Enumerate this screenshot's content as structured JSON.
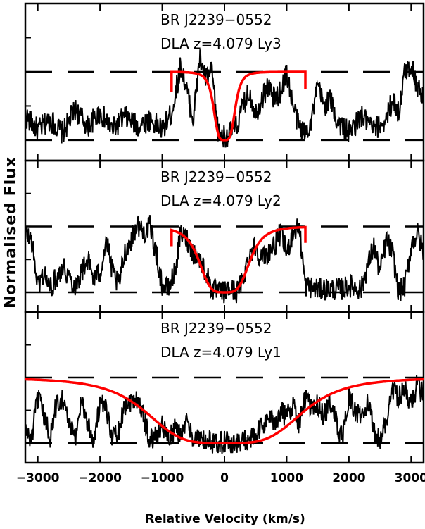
{
  "figure": {
    "y_axis_label": "Normalised Flux",
    "x_axis_label": "Relative Velocity (km/s)"
  },
  "chart_data": {
    "type": "line",
    "xlim": [
      -3200,
      3200
    ],
    "x_ticks": [
      -3000,
      -2000,
      -1000,
      0,
      1000,
      2000,
      3000
    ],
    "x_tick_labels": [
      "−3000",
      "−2000",
      "−1000",
      "0",
      "1000",
      "2000",
      "3000"
    ],
    "xlabel": "Relative Velocity (km/s)",
    "ylabel": "Normalised Flux",
    "colors": {
      "data": "#000000",
      "model": "#ff0000"
    },
    "panels": [
      {
        "name": "Ly3",
        "label_object": "BR   J2239−0552",
        "label_line": "DLA  z=4.079  Ly3",
        "ylim": [
          -0.3,
          2.0
        ],
        "reference_levels": [
          0,
          1
        ],
        "model": {
          "type": "voigt",
          "center": 0,
          "depth": 1.0,
          "width": 180,
          "xrange": [
            -850,
            1300
          ]
        },
        "flux_anchors": [
          [
            -3200,
            0.35
          ],
          [
            -3000,
            0.15
          ],
          [
            -2800,
            0.3
          ],
          [
            -2600,
            0.1
          ],
          [
            -2400,
            0.45
          ],
          [
            -2200,
            0.2
          ],
          [
            -2000,
            0.4
          ],
          [
            -1800,
            0.15
          ],
          [
            -1600,
            0.35
          ],
          [
            -1400,
            0.2
          ],
          [
            -1200,
            0.3
          ],
          [
            -1000,
            0.15
          ],
          [
            -850,
            0.4
          ],
          [
            -700,
            1.1
          ],
          [
            -600,
            0.7
          ],
          [
            -500,
            0.3
          ],
          [
            -400,
            1.2
          ],
          [
            -300,
            0.9
          ],
          [
            -200,
            1.0
          ],
          [
            -100,
            0.1
          ],
          [
            0,
            0.05
          ],
          [
            100,
            0.1
          ],
          [
            200,
            0.2
          ],
          [
            300,
            0.5
          ],
          [
            400,
            0.7
          ],
          [
            500,
            0.4
          ],
          [
            600,
            0.6
          ],
          [
            700,
            0.8
          ],
          [
            800,
            0.6
          ],
          [
            900,
            0.7
          ],
          [
            1000,
            1.0
          ],
          [
            1100,
            0.5
          ],
          [
            1200,
            0.2
          ],
          [
            1300,
            0.1
          ],
          [
            1400,
            0.3
          ],
          [
            1500,
            0.8
          ],
          [
            1600,
            0.5
          ],
          [
            1700,
            0.6
          ],
          [
            1800,
            0.3
          ],
          [
            2000,
            0.1
          ],
          [
            2200,
            0.35
          ],
          [
            2400,
            0.15
          ],
          [
            2600,
            0.3
          ],
          [
            2700,
            0.6
          ],
          [
            2800,
            0.4
          ],
          [
            2900,
            1.0
          ],
          [
            3000,
            1.1
          ],
          [
            3100,
            0.8
          ],
          [
            3200,
            0.6
          ]
        ]
      },
      {
        "name": "Ly2",
        "label_object": "BR   J2239−0552",
        "label_line": "DLA  z=4.079  Ly2",
        "ylim": [
          -0.3,
          2.0
        ],
        "reference_levels": [
          0,
          1
        ],
        "model": {
          "type": "voigt",
          "center": 0,
          "depth": 1.0,
          "width": 420,
          "xrange": [
            -850,
            1300
          ]
        },
        "flux_anchors": [
          [
            -3200,
            0.9
          ],
          [
            -3100,
            0.8
          ],
          [
            -3000,
            0.1
          ],
          [
            -2900,
            0.3
          ],
          [
            -2800,
            0.05
          ],
          [
            -2600,
            0.4
          ],
          [
            -2400,
            0.1
          ],
          [
            -2200,
            0.5
          ],
          [
            -2100,
            0.2
          ],
          [
            -2000,
            0.3
          ],
          [
            -1900,
            0.8
          ],
          [
            -1800,
            0.3
          ],
          [
            -1700,
            0.1
          ],
          [
            -1600,
            0.6
          ],
          [
            -1500,
            0.8
          ],
          [
            -1400,
            1.05
          ],
          [
            -1300,
            0.9
          ],
          [
            -1200,
            1.0
          ],
          [
            -1100,
            0.6
          ],
          [
            -1000,
            0.1
          ],
          [
            -900,
            0.05
          ],
          [
            -800,
            0.3
          ],
          [
            -700,
            0.9
          ],
          [
            -600,
            0.8
          ],
          [
            -500,
            0.6
          ],
          [
            -400,
            0.5
          ],
          [
            -300,
            0.3
          ],
          [
            -200,
            0.05
          ],
          [
            -100,
            0.0
          ],
          [
            0,
            0.0
          ],
          [
            100,
            0.05
          ],
          [
            200,
            0.0
          ],
          [
            300,
            0.2
          ],
          [
            400,
            0.6
          ],
          [
            500,
            0.7
          ],
          [
            600,
            0.5
          ],
          [
            700,
            0.6
          ],
          [
            800,
            0.7
          ],
          [
            900,
            0.9
          ],
          [
            1000,
            0.6
          ],
          [
            1100,
            0.9
          ],
          [
            1200,
            1.0
          ],
          [
            1300,
            0.1
          ],
          [
            1500,
            0.05
          ],
          [
            1700,
            0.05
          ],
          [
            1900,
            0.05
          ],
          [
            2000,
            0.1
          ],
          [
            2200,
            0.05
          ],
          [
            2300,
            0.4
          ],
          [
            2400,
            0.7
          ],
          [
            2500,
            0.3
          ],
          [
            2600,
            0.8
          ],
          [
            2700,
            0.6
          ],
          [
            2800,
            0.0
          ],
          [
            2900,
            0.1
          ],
          [
            3000,
            0.7
          ],
          [
            3100,
            0.9
          ],
          [
            3200,
            0.6
          ]
        ]
      },
      {
        "name": "Ly1",
        "label_object": "BR   J2239−0552",
        "label_line": "DLA  z=4.079  Ly1",
        "ylim": [
          -0.3,
          2.0
        ],
        "reference_levels": [
          0,
          1
        ],
        "model": {
          "type": "voigt",
          "center": 0,
          "depth": 1.0,
          "width": 1300,
          "xrange": [
            -3200,
            3200
          ]
        },
        "flux_anchors": [
          [
            -3200,
            0.2
          ],
          [
            -3100,
            0.05
          ],
          [
            -3000,
            0.7
          ],
          [
            -2900,
            0.4
          ],
          [
            -2800,
            0.1
          ],
          [
            -2700,
            0.6
          ],
          [
            -2600,
            0.7
          ],
          [
            -2500,
            0.3
          ],
          [
            -2400,
            0.05
          ],
          [
            -2300,
            0.7
          ],
          [
            -2200,
            0.3
          ],
          [
            -2100,
            0.05
          ],
          [
            -2000,
            0.6
          ],
          [
            -1900,
            0.5
          ],
          [
            -1800,
            0.1
          ],
          [
            -1700,
            0.2
          ],
          [
            -1600,
            0.6
          ],
          [
            -1500,
            0.65
          ],
          [
            -1400,
            0.7
          ],
          [
            -1300,
            0.4
          ],
          [
            -1200,
            0.05
          ],
          [
            -1100,
            0.1
          ],
          [
            -1000,
            0.3
          ],
          [
            -900,
            0.05
          ],
          [
            -800,
            0.2
          ],
          [
            -700,
            0.15
          ],
          [
            -600,
            0.3
          ],
          [
            -500,
            0.1
          ],
          [
            -400,
            0.05
          ],
          [
            -200,
            0.0
          ],
          [
            0,
            0.02
          ],
          [
            200,
            0.0
          ],
          [
            400,
            0.05
          ],
          [
            500,
            0.1
          ],
          [
            600,
            0.25
          ],
          [
            700,
            0.4
          ],
          [
            800,
            0.3
          ],
          [
            900,
            0.5
          ],
          [
            1000,
            0.4
          ],
          [
            1100,
            0.6
          ],
          [
            1200,
            0.3
          ],
          [
            1300,
            0.7
          ],
          [
            1400,
            0.5
          ],
          [
            1500,
            0.6
          ],
          [
            1600,
            0.4
          ],
          [
            1700,
            0.65
          ],
          [
            1800,
            0.3
          ],
          [
            1900,
            0.05
          ],
          [
            2000,
            0.7
          ],
          [
            2100,
            0.5
          ],
          [
            2200,
            0.4
          ],
          [
            2300,
            0.6
          ],
          [
            2400,
            0.2
          ],
          [
            2500,
            0.05
          ],
          [
            2600,
            0.3
          ],
          [
            2700,
            0.85
          ],
          [
            2800,
            0.7
          ],
          [
            2900,
            0.8
          ],
          [
            3000,
            0.6
          ],
          [
            3100,
            0.9
          ],
          [
            3200,
            0.7
          ]
        ]
      }
    ]
  }
}
